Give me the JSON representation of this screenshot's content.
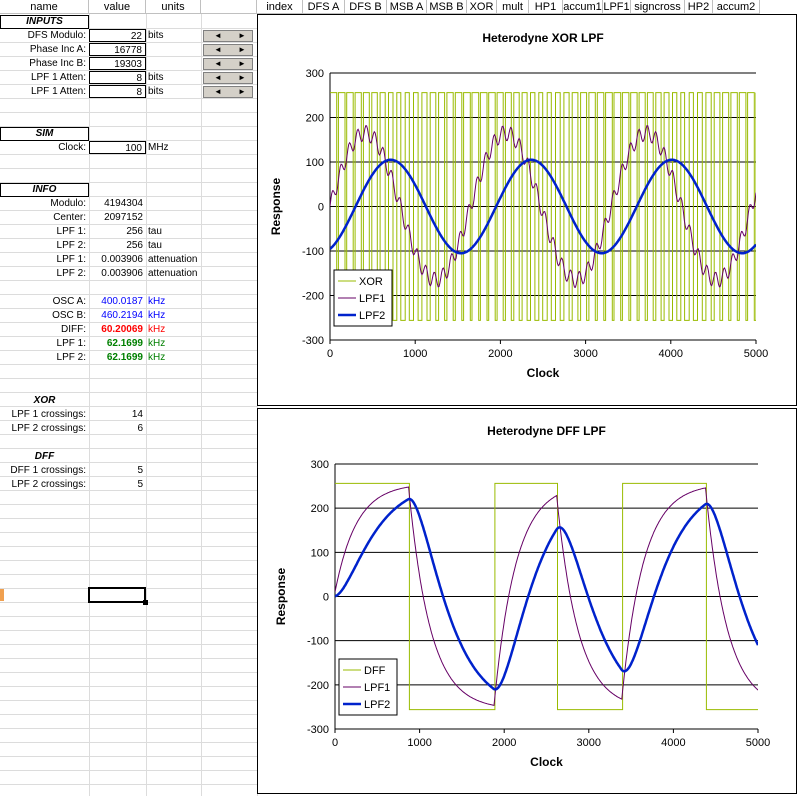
{
  "headers_left": [
    "name",
    "value",
    "units"
  ],
  "headers_right": [
    "index",
    "DFS A",
    "DFS B",
    "MSB A",
    "MSB B",
    "XOR",
    "mult",
    "HP1",
    "accum1",
    "LPF1",
    "signcross",
    "HP2",
    "accum2"
  ],
  "inputs": {
    "title": "INPUTS",
    "rows": [
      {
        "name": "DFS Modulo:",
        "value": "22",
        "units": "bits"
      },
      {
        "name": "Phase Inc A:",
        "value": "16778",
        "units": ""
      },
      {
        "name": "Phase Inc B:",
        "value": "19303",
        "units": ""
      },
      {
        "name": "LPF 1 Atten:",
        "value": "8",
        "units": "bits"
      },
      {
        "name": "LPF 1 Atten:",
        "value": "8",
        "units": "bits"
      }
    ]
  },
  "sim": {
    "title": "SIM",
    "rows": [
      {
        "name": "Clock:",
        "value": "100",
        "units": "MHz"
      }
    ]
  },
  "info": {
    "title": "INFO",
    "rows": [
      {
        "name": "Modulo:",
        "value": "4194304",
        "units": ""
      },
      {
        "name": "Center:",
        "value": "2097152",
        "units": ""
      },
      {
        "name": "LPF 1:",
        "value": "256",
        "units": "tau"
      },
      {
        "name": "LPF 2:",
        "value": "256",
        "units": "tau"
      },
      {
        "name": "LPF 1:",
        "value": "0.003906",
        "units": "attenuation"
      },
      {
        "name": "LPF 2:",
        "value": "0.003906",
        "units": "attenuation"
      }
    ],
    "freq_rows": [
      {
        "name": "OSC A:",
        "value": "400.0187",
        "units": "kHz",
        "style": "blue"
      },
      {
        "name": "OSC B:",
        "value": "460.2194",
        "units": "kHz",
        "style": "blue"
      },
      {
        "name": "DIFF:",
        "value": "60.20069",
        "units": "kHz",
        "style": "red"
      },
      {
        "name": "LPF 1:",
        "value": "62.1699",
        "units": "kHz",
        "style": "green"
      },
      {
        "name": "LPF 2:",
        "value": "62.1699",
        "units": "kHz",
        "style": "green"
      }
    ]
  },
  "xor": {
    "title": "XOR",
    "rows": [
      {
        "name": "LPF 1 crossings:",
        "value": "14"
      },
      {
        "name": "LPF 2 crossings:",
        "value": "6"
      }
    ]
  },
  "dff": {
    "title": "DFF",
    "rows": [
      {
        "name": "DFF 1 crossings:",
        "value": "5"
      },
      {
        "name": "LPF 2 crossings:",
        "value": "5"
      }
    ]
  },
  "spinner": {
    "left": "◄",
    "right": "►"
  },
  "chart_data": [
    {
      "type": "line",
      "title": "Heterodyne XOR LPF",
      "xlabel": "Clock",
      "ylabel": "Response",
      "xlim": [
        0,
        5000
      ],
      "ylim": [
        -300,
        300
      ],
      "xticks": [
        0,
        1000,
        2000,
        3000,
        4000,
        5000
      ],
      "yticks": [
        -300,
        -200,
        -100,
        0,
        100,
        200,
        300
      ],
      "grid": true,
      "legend": "bottom-left",
      "series": [
        {
          "name": "XOR",
          "color": "#99bb00",
          "kind": "square",
          "amplitude": 256,
          "pulses": 51
        },
        {
          "name": "LPF1",
          "color": "#660066",
          "kind": "wave",
          "amplitude": 165,
          "period": 1650,
          "ripple": 25
        },
        {
          "name": "LPF2",
          "color": "#0022cc",
          "kind": "wave",
          "amplitude": 105,
          "period": 1650,
          "phase": 300
        }
      ]
    },
    {
      "type": "line",
      "title": "Heterodyne DFF LPF",
      "xlabel": "Clock",
      "ylabel": "Response",
      "xlim": [
        0,
        5000
      ],
      "ylim": [
        -300,
        300
      ],
      "xticks": [
        0,
        1000,
        2000,
        3000,
        4000,
        5000
      ],
      "yticks": [
        -300,
        -200,
        -100,
        0,
        100,
        200,
        300
      ],
      "grid": true,
      "legend": "bottom-left",
      "series": [
        {
          "name": "DFF",
          "color": "#99bb00",
          "kind": "dffsquare",
          "amplitude": 256,
          "edges": [
            0,
            880,
            1890,
            2630,
            3400,
            4390,
            5000
          ]
        },
        {
          "name": "LPF1",
          "color": "#660066",
          "kind": "rc",
          "amplitude": 256,
          "tau": 260
        },
        {
          "name": "LPF2",
          "color": "#0022cc",
          "kind": "rc2",
          "amplitude": 256,
          "tau": 260
        }
      ]
    }
  ]
}
